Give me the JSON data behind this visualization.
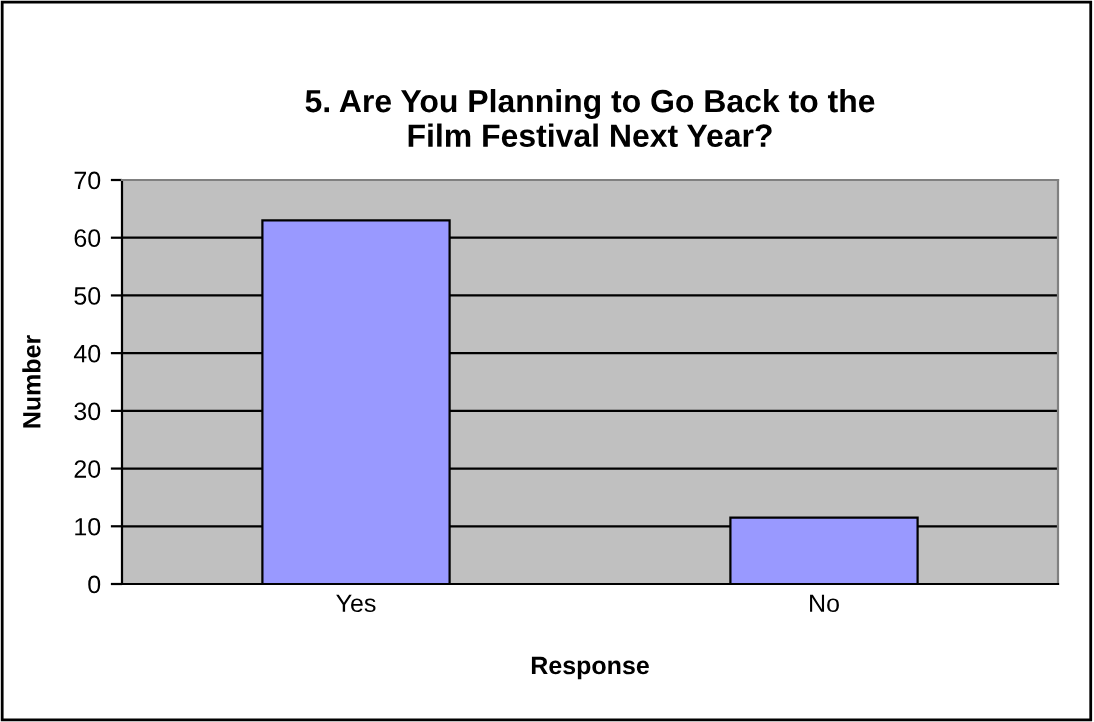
{
  "chart_data": {
    "type": "bar",
    "title": "5. Are You Planning to Go Back to the\nFilm Festival Next Year?",
    "xlabel": "Response",
    "ylabel": "Number",
    "categories": [
      "Yes",
      "No"
    ],
    "values": [
      63,
      11.5
    ],
    "color": "#9999ff",
    "ylim": [
      0,
      70
    ],
    "yticks": [
      0,
      10,
      20,
      30,
      40,
      50,
      60,
      70
    ],
    "grid": "y",
    "legend": false
  }
}
